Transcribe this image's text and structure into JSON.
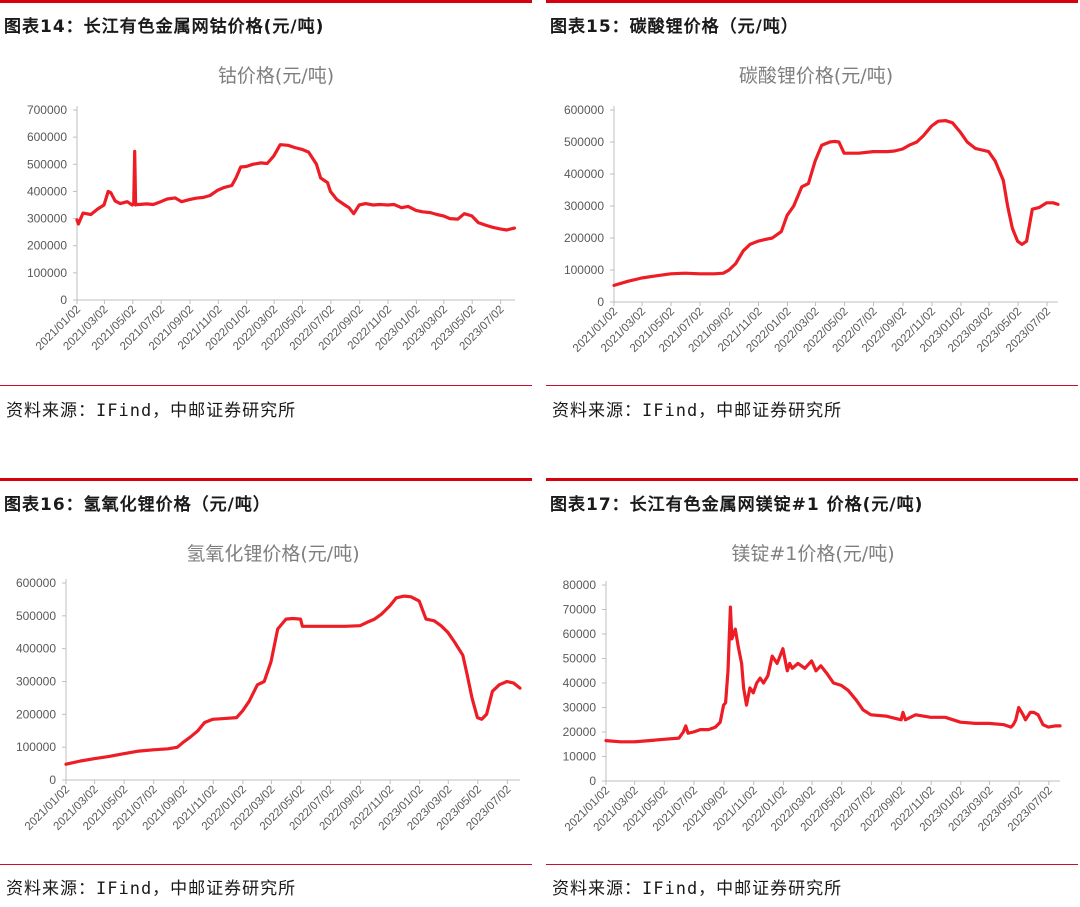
{
  "panels": [
    {
      "heading": "图表14：长江有色金属网钴价格(元/吨)",
      "source": "资料来源：IFind，中邮证券研究所",
      "chart_data": {
        "type": "line",
        "title": "钴价格(元/吨)",
        "ylim": [
          0,
          700000
        ],
        "yticks": [
          "0",
          "100000",
          "200000",
          "300000",
          "400000",
          "500000",
          "600000",
          "700000"
        ],
        "xrange": [
          "2021/01/02",
          "2023/08/02"
        ],
        "xticks": [
          "2021/01/02",
          "2021/03/02",
          "2021/05/02",
          "2021/07/02",
          "2021/09/02",
          "2021/11/02",
          "2022/01/02",
          "2022/03/02",
          "2022/05/02",
          "2022/07/02",
          "2022/09/02",
          "2022/11/02",
          "2023/01/02",
          "2023/03/02",
          "2023/05/02",
          "2023/07/02"
        ],
        "series": [
          {
            "color": "#ee1c25",
            "x": [
              "2021/01/02",
              "2021/01/05",
              "2021/01/15",
              "2021/02/01",
              "2021/02/15",
              "2021/03/01",
              "2021/03/10",
              "2021/03/16",
              "2021/03/25",
              "2021/04/05",
              "2021/04/20",
              "2021/05/01",
              "2021/05/04",
              "2021/05/06",
              "2021/05/08",
              "2021/05/10",
              "2021/05/15",
              "2021/06/01",
              "2021/06/15",
              "2021/07/01",
              "2021/07/15",
              "2021/08/01",
              "2021/08/15",
              "2021/09/01",
              "2021/09/15",
              "2021/10/01",
              "2021/10/15",
              "2021/11/01",
              "2021/11/15",
              "2021/12/01",
              "2021/12/10",
              "2021/12/20",
              "2022/01/01",
              "2022/01/15",
              "2022/02/01",
              "2022/02/15",
              "2022/03/01",
              "2022/03/15",
              "2022/04/01",
              "2022/04/15",
              "2022/05/01",
              "2022/05/15",
              "2022/06/01",
              "2022/06/10",
              "2022/06/25",
              "2022/07/01",
              "2022/07/15",
              "2022/08/01",
              "2022/08/10",
              "2022/08/20",
              "2022/09/01",
              "2022/09/15",
              "2022/10/01",
              "2022/10/15",
              "2022/11/01",
              "2022/11/15",
              "2022/12/01",
              "2022/12/15",
              "2023/01/01",
              "2023/01/15",
              "2023/02/01",
              "2023/02/15",
              "2023/03/01",
              "2023/03/15",
              "2023/04/01",
              "2023/04/15",
              "2023/05/01",
              "2023/05/15",
              "2023/06/01",
              "2023/06/15",
              "2023/07/01",
              "2023/07/15",
              "2023/08/01"
            ],
            "y": [
              295000,
              280000,
              320000,
              315000,
              335000,
              350000,
              400000,
              395000,
              365000,
              355000,
              362000,
              350000,
              355000,
              548000,
              350000,
              352000,
              352000,
              354000,
              352000,
              362000,
              372000,
              376000,
              362000,
              370000,
              375000,
              378000,
              385000,
              405000,
              415000,
              422000,
              450000,
              490000,
              492000,
              500000,
              505000,
              503000,
              530000,
              572000,
              570000,
              562000,
              555000,
              545000,
              500000,
              450000,
              432000,
              400000,
              370000,
              350000,
              340000,
              318000,
              350000,
              355000,
              350000,
              352000,
              350000,
              352000,
              340000,
              345000,
              330000,
              325000,
              322000,
              315000,
              310000,
              300000,
              298000,
              318000,
              310000,
              285000,
              275000,
              268000,
              262000,
              258000,
              265000
            ]
          }
        ]
      }
    },
    {
      "heading": "图表15：碳酸锂价格（元/吨）",
      "source": "资料来源：IFind，中邮证券研究所",
      "chart_data": {
        "type": "line",
        "title": "碳酸锂价格(元/吨)",
        "ylim": [
          0,
          600000
        ],
        "yticks": [
          "0",
          "100000",
          "200000",
          "300000",
          "400000",
          "500000",
          "600000"
        ],
        "xrange": [
          "2021/01/02",
          "2023/07/25"
        ],
        "xticks": [
          "2021/01/02",
          "2021/03/02",
          "2021/05/02",
          "2021/07/02",
          "2021/09/02",
          "2021/11/02",
          "2022/01/02",
          "2022/03/02",
          "2022/05/02",
          "2022/07/02",
          "2022/09/02",
          "2022/11/02",
          "2023/01/02",
          "2023/03/02",
          "2023/05/02",
          "2023/07/02"
        ],
        "series": [
          {
            "color": "#ee1c25",
            "x": [
              "2021/01/02",
              "2021/02/01",
              "2021/03/01",
              "2021/04/01",
              "2021/05/01",
              "2021/06/01",
              "2021/07/01",
              "2021/08/01",
              "2021/08/20",
              "2021/09/01",
              "2021/09/15",
              "2021/10/01",
              "2021/10/15",
              "2021/11/01",
              "2021/11/15",
              "2021/12/01",
              "2021/12/20",
              "2022/01/01",
              "2022/01/15",
              "2022/02/01",
              "2022/02/15",
              "2022/03/01",
              "2022/03/15",
              "2022/04/01",
              "2022/04/10",
              "2022/04/20",
              "2022/05/01",
              "2022/06/01",
              "2022/07/01",
              "2022/08/01",
              "2022/08/15",
              "2022/09/01",
              "2022/09/15",
              "2022/10/01",
              "2022/10/15",
              "2022/11/01",
              "2022/11/15",
              "2022/12/01",
              "2022/12/15",
              "2023/01/01",
              "2023/01/15",
              "2023/02/01",
              "2023/02/15",
              "2023/03/01",
              "2023/03/15",
              "2023/04/01",
              "2023/04/10",
              "2023/04/20",
              "2023/05/01",
              "2023/05/10",
              "2023/05/20",
              "2023/06/01",
              "2023/06/15",
              "2023/07/01",
              "2023/07/15",
              "2023/07/25"
            ],
            "y": [
              52000,
              65000,
              75000,
              82000,
              88000,
              90000,
              88000,
              88000,
              90000,
              100000,
              120000,
              160000,
              180000,
              190000,
              195000,
              200000,
              220000,
              270000,
              300000,
              360000,
              370000,
              440000,
              490000,
              500000,
              502000,
              500000,
              465000,
              465000,
              470000,
              470000,
              472000,
              478000,
              490000,
              500000,
              520000,
              550000,
              565000,
              567000,
              560000,
              530000,
              500000,
              480000,
              475000,
              470000,
              440000,
              380000,
              300000,
              230000,
              190000,
              180000,
              190000,
              290000,
              295000,
              310000,
              310000,
              305000
            ]
          }
        ]
      }
    },
    {
      "heading": "图表16：氢氧化锂价格（元/吨）",
      "source": "资料来源：IFind，中邮证券研究所",
      "chart_data": {
        "type": "line",
        "title": "氢氧化锂价格(元/吨)",
        "ylim": [
          0,
          600000
        ],
        "yticks": [
          "0",
          "100000",
          "200000",
          "300000",
          "400000",
          "500000",
          "600000"
        ],
        "xrange": [
          "2021/01/02",
          "2023/07/28"
        ],
        "xticks": [
          "2021/01/02",
          "2021/03/02",
          "2021/05/02",
          "2021/07/02",
          "2021/09/02",
          "2021/11/02",
          "2022/01/02",
          "2022/03/02",
          "2022/05/02",
          "2022/07/02",
          "2022/09/02",
          "2022/11/02",
          "2023/01/02",
          "2023/03/02",
          "2023/05/02",
          "2023/07/02"
        ],
        "series": [
          {
            "color": "#ee1c25",
            "x": [
              "2021/01/02",
              "2021/02/01",
              "2021/03/01",
              "2021/04/01",
              "2021/05/01",
              "2021/06/01",
              "2021/07/01",
              "2021/08/01",
              "2021/08/20",
              "2021/09/01",
              "2021/09/15",
              "2021/10/01",
              "2021/10/15",
              "2021/11/01",
              "2021/12/01",
              "2021/12/20",
              "2022/01/01",
              "2022/01/15",
              "2022/02/01",
              "2022/02/15",
              "2022/03/01",
              "2022/03/15",
              "2022/04/01",
              "2022/04/15",
              "2022/05/01",
              "2022/05/05",
              "2022/06/01",
              "2022/07/01",
              "2022/08/01",
              "2022/09/01",
              "2022/09/15",
              "2022/10/01",
              "2022/10/15",
              "2022/11/01",
              "2022/11/15",
              "2022/12/01",
              "2022/12/15",
              "2023/01/01",
              "2023/01/15",
              "2023/02/01",
              "2023/02/15",
              "2023/03/01",
              "2023/03/15",
              "2023/04/01",
              "2023/04/10",
              "2023/04/20",
              "2023/05/01",
              "2023/05/10",
              "2023/05/20",
              "2023/06/01",
              "2023/06/15",
              "2023/07/01",
              "2023/07/15",
              "2023/07/28"
            ],
            "y": [
              48000,
              58000,
              65000,
              72000,
              80000,
              88000,
              92000,
              95000,
              100000,
              115000,
              130000,
              150000,
              175000,
              185000,
              188000,
              190000,
              210000,
              240000,
              290000,
              300000,
              360000,
              460000,
              490000,
              492000,
              490000,
              468000,
              468000,
              468000,
              468000,
              470000,
              480000,
              490000,
              505000,
              530000,
              555000,
              560000,
              558000,
              545000,
              490000,
              485000,
              470000,
              450000,
              420000,
              380000,
              320000,
              250000,
              190000,
              185000,
              200000,
              270000,
              290000,
              300000,
              295000,
              280000
            ]
          }
        ]
      }
    },
    {
      "heading": "图表17：长江有色金属网镁锭#1 价格(元/吨)",
      "source": "资料来源：IFind，中邮证券研究所",
      "chart_data": {
        "type": "line",
        "title": "镁锭#1价格(元/吨)",
        "ylim": [
          0,
          80000
        ],
        "yticks": [
          "0",
          "10000",
          "20000",
          "30000",
          "40000",
          "50000",
          "60000",
          "70000",
          "80000"
        ],
        "xrange": [
          "2021/01/02",
          "2023/07/25"
        ],
        "xticks": [
          "2021/01/02",
          "2021/03/02",
          "2021/05/02",
          "2021/07/02",
          "2021/09/02",
          "2021/11/02",
          "2022/01/02",
          "2022/03/02",
          "2022/05/02",
          "2022/07/02",
          "2022/09/02",
          "2022/11/02",
          "2023/01/02",
          "2023/03/02",
          "2023/05/02",
          "2023/07/02"
        ],
        "series": [
          {
            "color": "#ee1c25",
            "x": [
              "2021/01/02",
              "2021/02/01",
              "2021/03/01",
              "2021/04/01",
              "2021/05/01",
              "2021/06/01",
              "2021/06/10",
              "2021/06/15",
              "2021/06/20",
              "2021/07/01",
              "2021/07/15",
              "2021/08/01",
              "2021/08/15",
              "2021/08/25",
              "2021/09/01",
              "2021/09/05",
              "2021/09/10",
              "2021/09/15",
              "2021/09/18",
              "2021/09/25",
              "2021/10/01",
              "2021/10/08",
              "2021/10/12",
              "2021/10/18",
              "2021/10/25",
              "2021/11/01",
              "2021/11/08",
              "2021/11/15",
              "2021/11/22",
              "2021/12/01",
              "2021/12/10",
              "2021/12/20",
              "2022/01/01",
              "2022/01/10",
              "2022/01/15",
              "2022/01/20",
              "2022/02/01",
              "2022/02/15",
              "2022/03/01",
              "2022/03/10",
              "2022/03/20",
              "2022/04/01",
              "2022/04/15",
              "2022/05/01",
              "2022/05/15",
              "2022/06/01",
              "2022/06/15",
              "2022/07/01",
              "2022/08/01",
              "2022/09/01",
              "2022/09/05",
              "2022/09/10",
              "2022/10/01",
              "2022/11/01",
              "2022/12/01",
              "2023/01/01",
              "2023/02/01",
              "2023/03/01",
              "2023/04/01",
              "2023/04/15",
              "2023/04/20",
              "2023/04/25",
              "2023/05/01",
              "2023/05/10",
              "2023/05/15",
              "2023/05/25",
              "2023/06/01",
              "2023/06/10",
              "2023/06/20",
              "2023/07/01",
              "2023/07/15",
              "2023/07/25"
            ],
            "y": [
              16500,
              16000,
              16000,
              16500,
              17000,
              17500,
              20000,
              22500,
              19500,
              20000,
              21000,
              21000,
              22000,
              24000,
              31000,
              32000,
              45000,
              71000,
              58000,
              62000,
              55000,
              48000,
              38000,
              31000,
              38000,
              36000,
              40000,
              42000,
              40000,
              43000,
              51000,
              48000,
              54000,
              45000,
              48000,
              46000,
              48000,
              46000,
              49000,
              45000,
              47000,
              44000,
              40000,
              39000,
              37000,
              33000,
              29000,
              27000,
              26500,
              25000,
              28000,
              25000,
              27000,
              26000,
              26000,
              24000,
              23500,
              23500,
              23000,
              22000,
              23000,
              25000,
              30000,
              27000,
              25000,
              28000,
              28000,
              27000,
              23000,
              22000,
              22500,
              22500
            ]
          }
        ]
      }
    }
  ]
}
